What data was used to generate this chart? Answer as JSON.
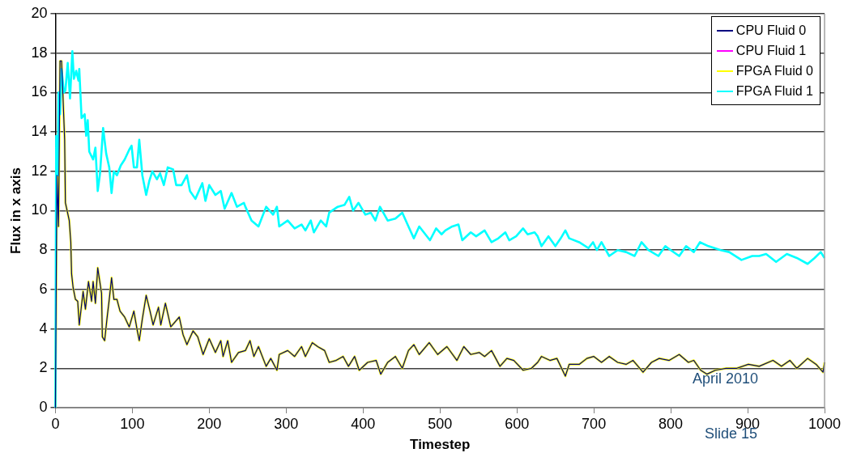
{
  "chart_data": {
    "type": "line",
    "xlabel": "Timestep",
    "ylabel": "Flux in x axis",
    "xlim": [
      0,
      1000
    ],
    "xticks": [
      0,
      100,
      200,
      300,
      400,
      500,
      600,
      700,
      800,
      900,
      1000
    ],
    "ylim": [
      0,
      20
    ],
    "yticks": [
      0,
      2,
      4,
      6,
      8,
      10,
      12,
      14,
      16,
      18,
      20
    ],
    "grid": "y",
    "legend": "top right",
    "marker": "none",
    "line_style": "solid",
    "annotations": [
      "April 2010",
      "Slide 15"
    ],
    "series": [
      {
        "name": "CPU Fluid 0",
        "color": "#000080",
        "x": [
          0,
          2,
          4,
          6,
          8,
          12,
          13,
          18,
          20,
          21,
          23,
          26,
          29,
          31,
          36,
          39,
          43,
          47,
          49,
          52,
          55,
          60,
          61,
          64,
          67,
          70,
          73,
          76,
          80,
          84,
          90,
          96,
          102,
          106,
          109,
          113,
          118,
          123,
          127,
          134,
          137,
          143,
          150,
          161,
          166,
          171,
          179,
          185,
          192,
          200,
          208,
          215,
          218,
          224,
          229,
          238,
          247,
          253,
          258,
          264,
          274,
          280,
          288,
          291,
          302,
          311,
          320,
          325,
          334,
          341,
          350,
          356,
          365,
          374,
          381,
          389,
          395,
          406,
          417,
          423,
          432,
          442,
          451,
          459,
          466,
          473,
          486,
          497,
          509,
          522,
          531,
          540,
          551,
          558,
          567,
          578,
          587,
          596,
          608,
          619,
          627,
          632,
          643,
          652,
          663,
          668,
          681,
          691,
          700,
          710,
          720,
          731,
          742,
          751,
          764,
          775,
          785,
          798,
          811,
          823,
          830,
          839,
          847,
          858,
          872,
          886,
          901,
          915,
          933,
          944,
          955,
          964,
          978,
          989,
          998,
          1000
        ],
        "values": [
          0,
          11.8,
          9.2,
          17.6,
          17.6,
          13.6,
          10.4,
          9.5,
          8.4,
          6.8,
          6.1,
          5.5,
          5.4,
          4.2,
          5.9,
          5,
          6.4,
          5.4,
          6.4,
          5.3,
          7.1,
          5.8,
          3.6,
          3.4,
          4.5,
          5.5,
          6.6,
          5.5,
          5.5,
          4.9,
          4.6,
          4.1,
          4.9,
          4,
          3.4,
          4.5,
          5.7,
          4.9,
          4.2,
          5.1,
          4.2,
          5.3,
          4.1,
          4.6,
          3.7,
          3.2,
          3.9,
          3.6,
          2.7,
          3.5,
          2.8,
          3.4,
          2.6,
          3.4,
          2.3,
          2.8,
          2.9,
          3.4,
          2.6,
          3.1,
          2.1,
          2.5,
          1.9,
          2.7,
          2.9,
          2.6,
          3.1,
          2.6,
          3.3,
          3.1,
          2.9,
          2.3,
          2.4,
          2.6,
          2.1,
          2.6,
          1.9,
          2.3,
          2.4,
          1.7,
          2.3,
          2.6,
          2,
          2.9,
          3.2,
          2.7,
          3.3,
          2.7,
          3.1,
          2.4,
          3.1,
          2.7,
          2.8,
          2.6,
          2.9,
          2.1,
          2.5,
          2.4,
          1.9,
          2,
          2.3,
          2.6,
          2.4,
          2.5,
          1.6,
          2.2,
          2.2,
          2.5,
          2.6,
          2.3,
          2.6,
          2.3,
          2.2,
          2.4,
          1.8,
          2.3,
          2.5,
          2.4,
          2.7,
          2.3,
          2.4,
          1.9,
          1.7,
          1.9,
          2,
          2,
          2.2,
          2.1,
          2.4,
          2.1,
          2.4,
          2,
          2.5,
          2.2,
          1.8,
          2.3
        ]
      },
      {
        "name": "CPU Fluid 1",
        "color": "#ff00ff"
      },
      {
        "name": "FPGA Fluid 0",
        "color": "#ffff00",
        "x": [
          0,
          2,
          4,
          6,
          8,
          12,
          13,
          18,
          20,
          21,
          23,
          26,
          29,
          31,
          36,
          39,
          43,
          47,
          49,
          52,
          55,
          60,
          61,
          64,
          67,
          70,
          73,
          76,
          80,
          84,
          90,
          96,
          102,
          106,
          109,
          113,
          118,
          123,
          127,
          134,
          137,
          143,
          150,
          161,
          166,
          171,
          179,
          185,
          192,
          200,
          208,
          215,
          218,
          224,
          229,
          238,
          247,
          253,
          258,
          264,
          274,
          280,
          288,
          291,
          302,
          311,
          320,
          325,
          334,
          341,
          350,
          356,
          365,
          374,
          381,
          389,
          395,
          406,
          417,
          423,
          432,
          442,
          451,
          459,
          466,
          473,
          486,
          497,
          509,
          522,
          531,
          540,
          551,
          558,
          567,
          578,
          587,
          596,
          608,
          619,
          627,
          632,
          643,
          652,
          663,
          668,
          681,
          691,
          700,
          710,
          720,
          731,
          742,
          751,
          764,
          775,
          785,
          798,
          811,
          823,
          830,
          839,
          847,
          858,
          872,
          886,
          901,
          915,
          933,
          944,
          955,
          964,
          978,
          989,
          998,
          1000
        ],
        "values": [
          0,
          11.8,
          9.2,
          17.6,
          17.6,
          13.6,
          10.4,
          9.5,
          8.4,
          6.8,
          6.1,
          5.5,
          5.4,
          4.2,
          5.9,
          5,
          6.4,
          5.4,
          6.4,
          5.3,
          7.1,
          5.8,
          3.6,
          3.4,
          4.5,
          5.5,
          6.6,
          5.5,
          5.5,
          4.9,
          4.6,
          4.1,
          4.9,
          4,
          3.4,
          4.5,
          5.7,
          4.9,
          4.2,
          5.1,
          4.2,
          5.3,
          4.1,
          4.6,
          3.7,
          3.2,
          3.9,
          3.6,
          2.7,
          3.5,
          2.8,
          3.4,
          2.6,
          3.4,
          2.3,
          2.8,
          2.9,
          3.4,
          2.6,
          3.1,
          2.1,
          2.5,
          1.9,
          2.7,
          2.9,
          2.6,
          3.1,
          2.6,
          3.3,
          3.1,
          2.9,
          2.3,
          2.4,
          2.6,
          2.1,
          2.6,
          1.9,
          2.3,
          2.4,
          1.7,
          2.3,
          2.6,
          2,
          2.9,
          3.2,
          2.7,
          3.3,
          2.7,
          3.1,
          2.4,
          3.1,
          2.7,
          2.8,
          2.6,
          2.9,
          2.1,
          2.5,
          2.4,
          1.9,
          2,
          2.3,
          2.6,
          2.4,
          2.5,
          1.6,
          2.2,
          2.2,
          2.5,
          2.6,
          2.3,
          2.6,
          2.3,
          2.2,
          2.4,
          1.8,
          2.3,
          2.5,
          2.4,
          2.7,
          2.3,
          2.4,
          1.9,
          1.7,
          1.9,
          2,
          2,
          2.2,
          2.1,
          2.4,
          2.1,
          2.4,
          2,
          2.5,
          2.2,
          1.8,
          2.3
        ]
      },
      {
        "name": "FPGA Fluid 1",
        "color": "#00ffff",
        "x": [
          0,
          1,
          3,
          4,
          6,
          8,
          11,
          13,
          16,
          19,
          22,
          24,
          27,
          30,
          31,
          34,
          38,
          40,
          42,
          44,
          49,
          52,
          55,
          58,
          62,
          66,
          70,
          73,
          76,
          80,
          85,
          90,
          96,
          99,
          102,
          106,
          109,
          113,
          118,
          122,
          126,
          132,
          136,
          141,
          146,
          153,
          157,
          164,
          171,
          175,
          182,
          191,
          195,
          200,
          208,
          215,
          220,
          229,
          236,
          245,
          247,
          255,
          264,
          274,
          283,
          288,
          291,
          302,
          311,
          320,
          325,
          332,
          336,
          345,
          352,
          356,
          367,
          376,
          382,
          387,
          394,
          403,
          410,
          416,
          422,
          432,
          442,
          451,
          459,
          466,
          473,
          487,
          495,
          502,
          507,
          516,
          524,
          529,
          540,
          547,
          558,
          567,
          576,
          585,
          590,
          599,
          608,
          614,
          623,
          627,
          632,
          641,
          650,
          657,
          663,
          668,
          681,
          693,
          699,
          704,
          710,
          720,
          731,
          742,
          753,
          762,
          771,
          784,
          793,
          800,
          811,
          820,
          830,
          838,
          849,
          865,
          876,
          892,
          906,
          915,
          924,
          937,
          951,
          964,
          978,
          987,
          995,
          1000
        ],
        "values": [
          0,
          13.8,
          11.8,
          16,
          14.9,
          17.2,
          16,
          16.1,
          17.5,
          15.7,
          18.1,
          16.7,
          17.1,
          16.6,
          17.2,
          14.7,
          14.9,
          13.8,
          14.6,
          13,
          12.6,
          13.2,
          11,
          11.9,
          14.2,
          12.9,
          12.2,
          10.9,
          12,
          11.8,
          12.3,
          12.6,
          13.1,
          13.3,
          12.2,
          12.2,
          13.6,
          11.8,
          10.8,
          11.5,
          12,
          11.6,
          11.9,
          11.3,
          12.2,
          12.1,
          11.3,
          11.3,
          11.8,
          11,
          10.6,
          11.4,
          10.5,
          11.3,
          10.8,
          11,
          10.1,
          10.9,
          10.2,
          10.4,
          10.2,
          9.5,
          9.2,
          10.2,
          9.8,
          10.2,
          9.2,
          9.5,
          9.1,
          9.3,
          9,
          9.5,
          8.9,
          9.5,
          9.2,
          9.9,
          10.2,
          10.3,
          10.7,
          10,
          10.4,
          9.8,
          9.9,
          9.5,
          10.2,
          9.5,
          9.6,
          9.9,
          9.2,
          8.6,
          9.2,
          8.5,
          9.1,
          8.8,
          9,
          9.2,
          9.3,
          8.5,
          8.9,
          8.7,
          9,
          8.4,
          8.6,
          8.9,
          8.5,
          8.7,
          9.1,
          8.8,
          8.9,
          8.7,
          8.2,
          8.7,
          8.2,
          8.6,
          9,
          8.6,
          8.4,
          8.1,
          8.4,
          8,
          8.4,
          7.7,
          8,
          7.9,
          7.7,
          8.4,
          8,
          7.7,
          8.2,
          8,
          7.7,
          8.2,
          7.9,
          8.4,
          8.2,
          8,
          7.9,
          7.5,
          7.7,
          7.7,
          7.8,
          7.4,
          7.8,
          7.6,
          7.3,
          7.6,
          7.9,
          7.6
        ]
      }
    ]
  }
}
